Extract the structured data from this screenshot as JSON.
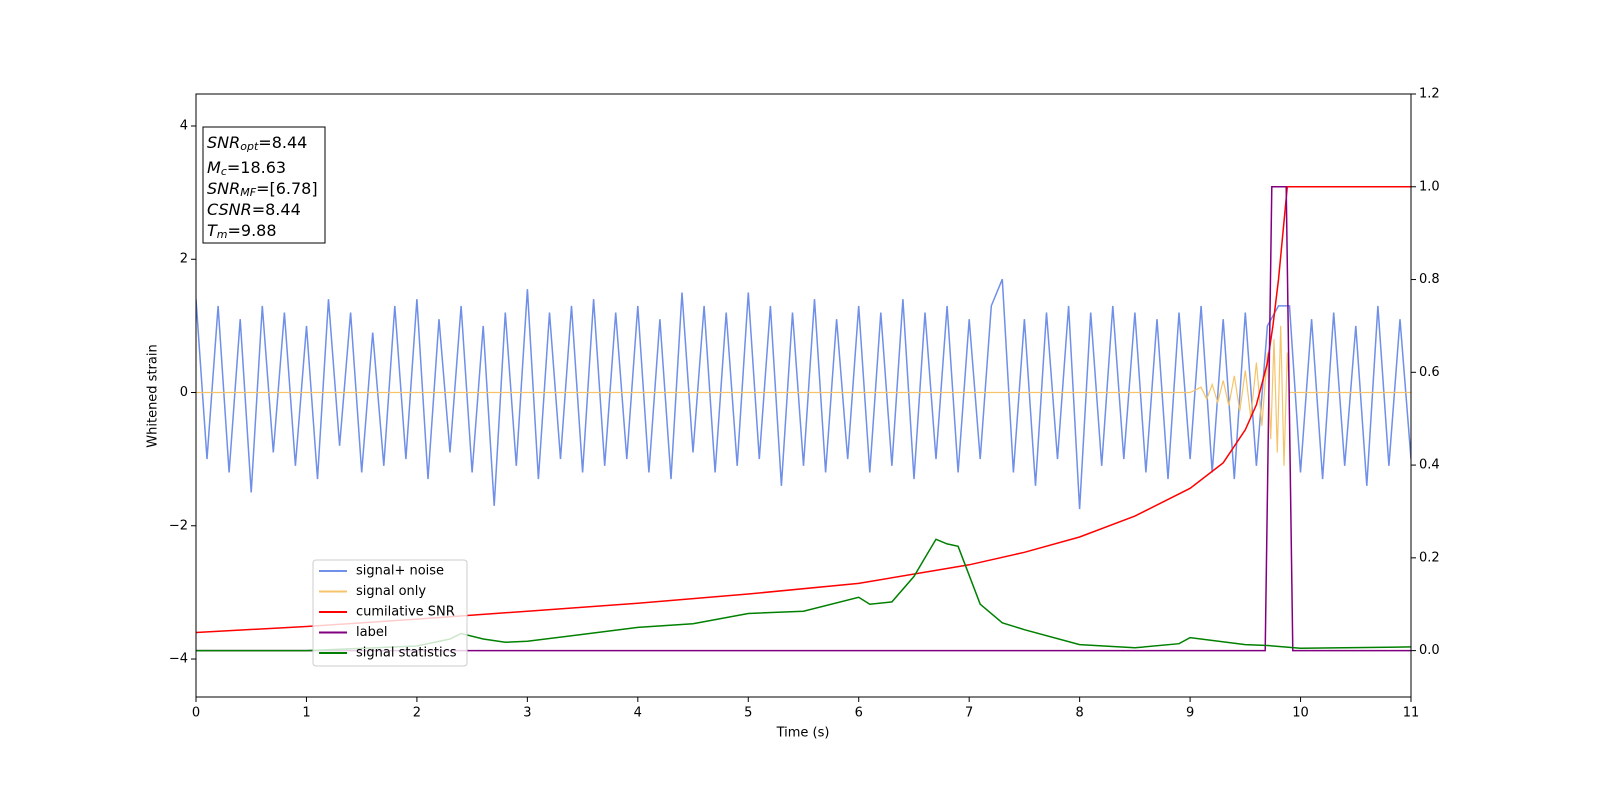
{
  "chart_data": {
    "type": "line",
    "xlabel": "Time (s)",
    "ylabel": "Whitened strain",
    "xlim": [
      0,
      11
    ],
    "ylim": [
      -4.57,
      4.48
    ],
    "y2lim": [
      -0.1,
      1.2
    ],
    "xticks": [
      0,
      1,
      2,
      3,
      4,
      5,
      6,
      7,
      8,
      9,
      10,
      11
    ],
    "yticks": [
      {
        "value": -4,
        "label": "−4"
      },
      {
        "value": -2,
        "label": "−2"
      },
      0,
      2,
      4
    ],
    "y2ticks": [
      {
        "value": 0,
        "label": "0.0"
      },
      {
        "value": 0.2,
        "label": "0.2"
      },
      {
        "value": 0.4,
        "label": "0.4"
      },
      {
        "value": 0.6,
        "label": "0.6"
      },
      {
        "value": 0.8,
        "label": "0.8"
      },
      {
        "value": 1,
        "label": "1.0"
      },
      {
        "value": 1.2,
        "label": "1.2"
      }
    ],
    "legend": "lower left",
    "annotations": [
      {
        "symbol": "SNR",
        "subscript": "opt",
        "text": "=8.44"
      },
      {
        "symbol": "M",
        "subscript": "c",
        "text": "=18.63"
      },
      {
        "symbol": "SNR",
        "subscript": "MF",
        "text": "=[6.78]"
      },
      {
        "symbol": "CSNR",
        "text": "=8.44"
      },
      {
        "symbol": "T",
        "subscript": "m",
        "text": "=9.88"
      }
    ],
    "series": [
      {
        "name": "signal+ noise",
        "color": "#6f8fe8",
        "x": [
          0,
          0.1,
          0.2,
          0.3,
          0.4,
          0.5,
          0.6,
          0.7,
          0.8,
          0.9,
          1,
          1.1,
          1.2,
          1.3,
          1.4,
          1.5,
          1.6,
          1.7,
          1.8,
          1.9,
          2,
          2.1,
          2.2,
          2.3,
          2.4,
          2.5,
          2.6,
          2.7,
          2.8,
          2.9,
          3,
          3.1,
          3.2,
          3.3,
          3.4,
          3.5,
          3.6,
          3.7,
          3.8,
          3.9,
          4,
          4.1,
          4.2,
          4.3,
          4.4,
          4.5,
          4.6,
          4.7,
          4.8,
          4.9,
          5,
          5.1,
          5.2,
          5.3,
          5.4,
          5.5,
          5.6,
          5.7,
          5.8,
          5.9,
          6,
          6.1,
          6.2,
          6.3,
          6.4,
          6.5,
          6.6,
          6.7,
          6.8,
          6.9,
          7,
          7.1,
          7.2,
          7.3,
          7.4,
          7.5,
          7.6,
          7.7,
          7.8,
          7.9,
          8,
          8.1,
          8.2,
          8.3,
          8.4,
          8.5,
          8.6,
          8.7,
          8.8,
          8.9,
          9,
          9.1,
          9.2,
          9.3,
          9.4,
          9.5,
          9.6,
          9.7,
          9.8,
          9.9,
          10,
          10.1,
          10.2,
          10.3,
          10.4,
          10.5,
          10.6,
          10.7,
          10.8,
          10.9,
          11
        ],
        "values": [
          1.4,
          -1.0,
          1.3,
          -1.2,
          1.1,
          -1.5,
          1.3,
          -0.9,
          1.2,
          -1.1,
          1.0,
          -1.3,
          1.4,
          -0.8,
          1.2,
          -1.2,
          0.9,
          -1.1,
          1.3,
          -1.0,
          1.4,
          -1.3,
          1.1,
          -0.9,
          1.3,
          -1.2,
          1.0,
          -1.7,
          1.2,
          -1.1,
          1.55,
          -1.3,
          1.2,
          -1.0,
          1.3,
          -1.2,
          1.4,
          -1.1,
          1.2,
          -1.0,
          1.3,
          -1.2,
          1.1,
          -1.3,
          1.5,
          -0.9,
          1.3,
          -1.2,
          1.2,
          -1.1,
          1.5,
          -1.0,
          1.3,
          -1.4,
          1.2,
          -1.1,
          1.4,
          -1.2,
          1.1,
          -1.0,
          1.3,
          -1.2,
          1.2,
          -1.1,
          1.4,
          -1.3,
          1.2,
          -1.0,
          1.3,
          -1.2,
          1.1,
          -1.0,
          1.3,
          1.7,
          -1.2,
          1.1,
          -1.4,
          1.2,
          -1.0,
          1.3,
          -1.75,
          1.2,
          -1.1,
          1.3,
          -1.0,
          1.2,
          -1.2,
          1.1,
          -1.3,
          1.2,
          -1.0,
          1.3,
          -1.2,
          1.1,
          -1.3,
          1.2,
          -1.1,
          1.0,
          1.3,
          1.3,
          -1.2,
          1.1,
          -1.3,
          1.2,
          -1.1,
          1.0,
          -1.4,
          1.3,
          -1.1,
          1.1,
          -1.0
        ],
        "width": 1.5
      },
      {
        "name": "signal only",
        "color": "#f5c46a",
        "x": [
          0,
          9.0,
          9.1,
          9.15,
          9.2,
          9.25,
          9.3,
          9.35,
          9.4,
          9.45,
          9.5,
          9.55,
          9.6,
          9.65,
          9.7,
          9.73,
          9.76,
          9.79,
          9.82,
          9.85,
          9.88,
          9.9,
          11
        ],
        "values": [
          0,
          0,
          0.08,
          -0.1,
          0.12,
          -0.15,
          0.18,
          -0.2,
          0.25,
          -0.28,
          0.33,
          -0.38,
          0.45,
          -0.5,
          0.6,
          -0.7,
          0.8,
          -0.9,
          1.0,
          -1.1,
          0.6,
          0,
          0
        ],
        "width": 1.2
      },
      {
        "name": "cumilative SNR",
        "color": "#ff0000",
        "axis": "y2",
        "x": [
          0,
          1,
          2,
          3,
          4,
          5,
          6,
          7,
          7.5,
          8,
          8.5,
          9,
          9.3,
          9.5,
          9.6,
          9.7,
          9.75,
          9.8,
          9.84,
          9.88,
          9.9,
          11
        ],
        "values": [
          0.039,
          0.052,
          0.068,
          0.085,
          0.102,
          0.122,
          0.145,
          0.185,
          0.212,
          0.245,
          0.29,
          0.35,
          0.405,
          0.476,
          0.53,
          0.62,
          0.7,
          0.8,
          0.9,
          1.0,
          1.0,
          1.0
        ],
        "width": 1.5
      },
      {
        "name": "label",
        "color": "#800080",
        "axis": "y2",
        "x": [
          0,
          9.68,
          9.74,
          9.87,
          9.93,
          11
        ],
        "values": [
          0,
          0,
          1,
          1,
          0,
          0
        ],
        "width": 1.5
      },
      {
        "name": "signal statistics",
        "color": "#008000",
        "axis": "y2",
        "x": [
          0,
          1,
          2,
          2.3,
          2.4,
          2.6,
          2.8,
          3,
          3.5,
          4,
          4.5,
          5,
          5.5,
          6,
          6.1,
          6.3,
          6.5,
          6.6,
          6.7,
          6.8,
          6.9,
          7.1,
          7.3,
          7.5,
          8,
          8.5,
          8.9,
          9,
          9.5,
          9.7,
          10,
          11
        ],
        "values": [
          0.0,
          0.0,
          0.01,
          0.025,
          0.037,
          0.025,
          0.018,
          0.02,
          0.035,
          0.05,
          0.058,
          0.08,
          0.085,
          0.115,
          0.1,
          0.105,
          0.16,
          0.2,
          0.24,
          0.23,
          0.225,
          0.1,
          0.06,
          0.045,
          0.013,
          0.006,
          0.015,
          0.028,
          0.013,
          0.011,
          0.005,
          0.008
        ],
        "width": 1.5
      }
    ]
  }
}
